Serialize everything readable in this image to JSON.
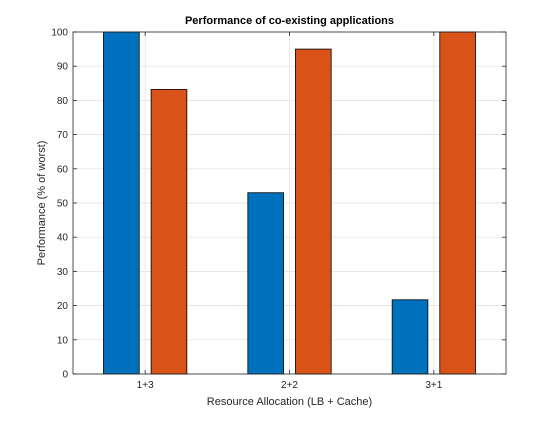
{
  "chart_data": {
    "type": "bar",
    "title": "Performance of co-existing applications",
    "xlabel": "Resource Allocation (LB + Cache)",
    "ylabel": "Performance (% of worst)",
    "categories": [
      "1+3",
      "2+2",
      "3+1"
    ],
    "series": [
      {
        "color": "#0072BD",
        "values": [
          100,
          53,
          21.7
        ]
      },
      {
        "color": "#D95319",
        "values": [
          83.2,
          95,
          100
        ]
      }
    ],
    "ylim": [
      0,
      100
    ],
    "yticks": [
      0,
      10,
      20,
      30,
      40,
      50,
      60,
      70,
      80,
      90,
      100
    ],
    "grid": true,
    "legend": "none"
  }
}
